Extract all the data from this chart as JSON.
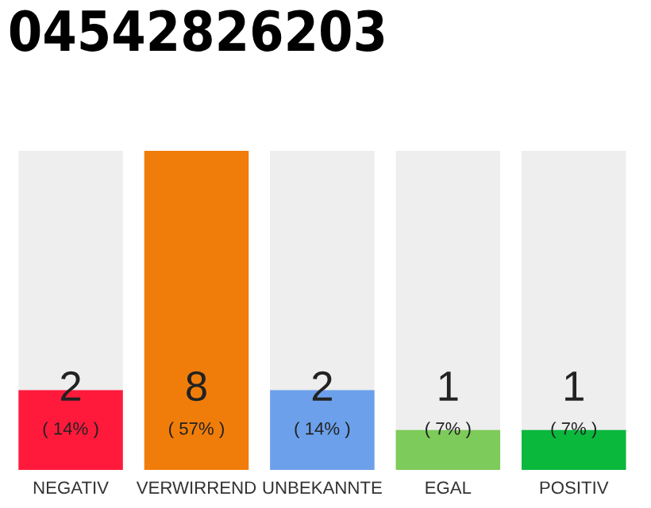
{
  "chart_data": {
    "type": "bar",
    "title": "04542826203",
    "categories": [
      "NEGATIV",
      "VERWIRREND",
      "UNBEKANNTE",
      "EGAL",
      "POSITIV"
    ],
    "values": [
      2,
      8,
      2,
      1,
      1
    ],
    "colors": [
      "#ff1a3c",
      "#f07d0a",
      "#6ca0ea",
      "#7dcb5a",
      "#0ab83c"
    ],
    "value_labels": [
      "2\n( 14% )",
      "8\n( 57% )",
      "2\n( 14% )",
      "1\n( 7% )",
      "1\n( 7% )"
    ],
    "ylim": [
      0,
      8
    ],
    "grid": false,
    "legend": false
  }
}
